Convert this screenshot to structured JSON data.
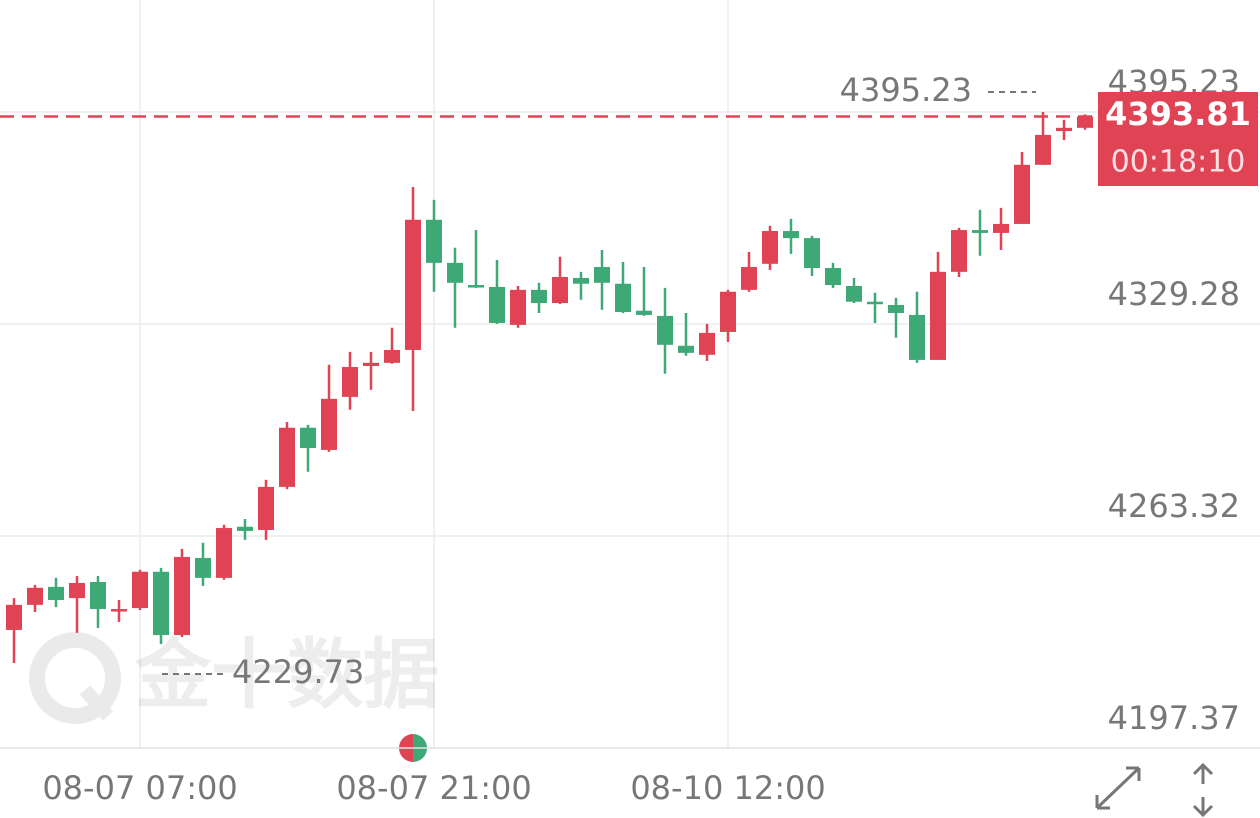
{
  "chart_data": {
    "type": "candlestick",
    "categories": [
      null,
      null,
      null,
      null,
      null,
      null,
      "08-07 07:00",
      null,
      null,
      null,
      null,
      null,
      null,
      null,
      null,
      null,
      null,
      null,
      null,
      null,
      "08-07 21:00",
      null,
      null,
      null,
      null,
      null,
      null,
      null,
      null,
      null,
      null,
      null,
      null,
      null,
      "08-10 12:00",
      null,
      null,
      null,
      null,
      null,
      null,
      null,
      null,
      null,
      null,
      null,
      null,
      null,
      null,
      null,
      null,
      null
    ],
    "open": [
      4234.1,
      4241.9,
      4247.5,
      4244.0,
      4249.0,
      4240.0,
      4240.9,
      4252.2,
      4232.5,
      4256.5,
      4250.3,
      4266.2,
      4265.2,
      4278.6,
      4297.0,
      4290.1,
      4306.6,
      4316.2,
      4317.2,
      4321.2,
      4361.7,
      4348.3,
      4341.4,
      4340.8,
      4329.0,
      4339.9,
      4335.8,
      4343.6,
      4347.0,
      4341.8,
      4333.4,
      4331.8,
      4322.5,
      4319.7,
      4326.8,
      4339.9,
      4348.0,
      4358.2,
      4356.0,
      4346.7,
      4341.1,
      4336.2,
      4335.2,
      4332.1,
      4318.1,
      4345.5,
      4358.5,
      4357.6,
      4360.4,
      4378.8,
      4389.3,
      4390.3
    ],
    "high": [
      4244.0,
      4248.1,
      4250.3,
      4250.9,
      4250.9,
      4243.4,
      4252.8,
      4253.4,
      4259.3,
      4261.2,
      4266.8,
      4268.6,
      4280.8,
      4298.8,
      4297.9,
      4316.6,
      4320.6,
      4320.6,
      4328.1,
      4371.9,
      4367.9,
      4353.0,
      4358.5,
      4349.2,
      4341.1,
      4342.1,
      4350.2,
      4345.5,
      4352.3,
      4348.6,
      4347.0,
      4340.5,
      4332.7,
      4329.3,
      4339.9,
      4351.7,
      4359.8,
      4362.0,
      4356.7,
      4348.3,
      4343.6,
      4339.0,
      4337.4,
      4339.3,
      4351.7,
      4359.2,
      4364.8,
      4365.4,
      4382.8,
      4395.23,
      4392.8,
      4394.5
    ],
    "low": [
      4223.8,
      4239.7,
      4241.2,
      4233.2,
      4234.7,
      4236.6,
      4240.3,
      4229.73,
      4231.9,
      4247.8,
      4249.7,
      4262.1,
      4262.1,
      4277.9,
      4283.3,
      4289.5,
      4302.6,
      4308.8,
      4316.9,
      4302.2,
      4339.3,
      4328.1,
      4340.5,
      4329.3,
      4328.1,
      4332.7,
      4335.5,
      4336.8,
      4333.7,
      4332.7,
      4331.8,
      4313.8,
      4319.4,
      4317.8,
      4323.7,
      4339.3,
      4346.1,
      4351.1,
      4344.2,
      4340.5,
      4335.8,
      4329.6,
      4325.0,
      4317.2,
      4318.1,
      4343.9,
      4350.5,
      4352.3,
      4360.4,
      4378.8,
      4386.5,
      4389.7
    ],
    "close": [
      4241.9,
      4247.2,
      4243.4,
      4248.7,
      4240.6,
      4240.6,
      4252.2,
      4232.5,
      4256.8,
      4250.3,
      4265.8,
      4264.9,
      4278.6,
      4297.0,
      4290.7,
      4306.0,
      4315.9,
      4317.2,
      4321.2,
      4361.7,
      4348.3,
      4342.1,
      4340.8,
      4329.6,
      4339.9,
      4335.8,
      4343.9,
      4341.8,
      4342.1,
      4333.0,
      4332.1,
      4322.8,
      4320.3,
      4326.5,
      4339.3,
      4347.0,
      4358.2,
      4356.0,
      4346.7,
      4341.4,
      4336.2,
      4335.5,
      4332.7,
      4318.1,
      4345.5,
      4358.5,
      4357.6,
      4360.4,
      4378.8,
      4388.1,
      4390.3,
      4393.81
    ],
    "up_color": "#e04454",
    "down_color": "#3ea877",
    "ylim": [
      4197.37,
      4430.07
    ],
    "yticks": [
      4197.37,
      4263.32,
      4329.28,
      4395.23
    ],
    "grid": true,
    "max_label": 4395.23,
    "min_label": 4229.73,
    "last_price": 4393.81,
    "countdown": "00:18:10",
    "watermark": "金十数据"
  }
}
